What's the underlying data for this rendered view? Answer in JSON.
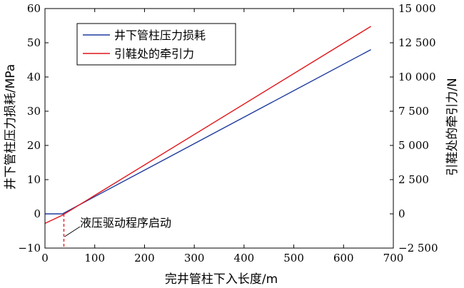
{
  "chart_data": {
    "type": "line",
    "xlabel": "完井管柱下入长度/m",
    "ylabel_left": "井下管柱压力损耗/MPa",
    "ylabel_right": "引鞋处的牵引力/N",
    "xlim": [
      0,
      700
    ],
    "ylim_left": [
      -10,
      60
    ],
    "ylim_right": [
      -2500,
      15000
    ],
    "x_ticks": [
      "0",
      "100",
      "200",
      "300",
      "400",
      "500",
      "600",
      "700"
    ],
    "y_left_ticks": [
      "−10",
      "0",
      "10",
      "20",
      "30",
      "40",
      "50",
      "60"
    ],
    "y_right_ticks": [
      "−2 500",
      "0",
      "2 500",
      "5 000",
      "7 500",
      "10 000",
      "12 500",
      "15 000"
    ],
    "legend_position": "top-left",
    "grid": false,
    "series": [
      {
        "name": "井下管柱压力损耗",
        "axis": "left",
        "color": "#1f3c9e",
        "points": [
          [
            0,
            0
          ],
          [
            35,
            0
          ],
          [
            655,
            48
          ]
        ]
      },
      {
        "name": "引鞋处的牵引力",
        "axis": "right",
        "color": "#e0161b",
        "points": [
          [
            0,
            -700
          ],
          [
            35,
            -100
          ],
          [
            655,
            13700
          ]
        ]
      }
    ],
    "annotations": [
      {
        "text": "液压驱动程序启动",
        "x": 38,
        "y": 0
      }
    ],
    "marker_line": {
      "x": 38,
      "color": "#e0161b"
    }
  }
}
